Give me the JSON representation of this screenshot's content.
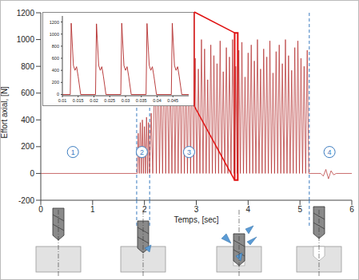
{
  "chart_data": [
    {
      "type": "line",
      "x_label": "Temps, [sec]",
      "y_label": "Effort axial, [N]",
      "color": "#b22a2a",
      "xlim": [
        0,
        6
      ],
      "xticks": [
        0,
        1,
        2,
        3,
        4,
        5,
        6
      ],
      "ylim": [
        -200,
        1200
      ],
      "yticks": [
        -200,
        0,
        200,
        400,
        600,
        800,
        1000,
        1200
      ],
      "x": [
        0,
        1.84,
        1.86,
        1.88,
        1.9,
        1.92,
        1.94,
        1.96,
        1.98,
        2.0,
        2.02,
        2.04,
        2.06,
        2.08,
        2.1,
        2.13,
        2.16,
        2.2,
        2.23,
        2.26,
        2.29,
        2.32,
        2.35,
        2.38,
        2.41,
        2.44,
        2.47,
        2.5,
        2.53,
        2.56,
        2.59,
        2.62,
        2.65,
        2.68,
        2.71,
        2.74,
        2.77,
        2.8,
        2.83,
        2.86,
        2.89,
        2.92,
        2.95,
        2.98,
        3.01,
        3.04,
        3.07,
        3.1,
        3.13,
        3.16,
        3.19,
        3.22,
        3.25,
        3.28,
        3.31,
        3.34,
        3.37,
        3.4,
        3.43,
        3.46,
        3.49,
        3.52,
        3.55,
        3.58,
        3.61,
        3.64,
        3.67,
        3.7,
        3.73,
        3.76,
        3.79,
        3.82,
        3.85,
        3.88,
        3.91,
        3.94,
        3.97,
        4,
        4.03,
        4.06,
        4.09,
        4.12,
        4.15,
        4.18,
        4.21,
        4.24,
        4.27,
        4.3,
        4.33,
        4.36,
        4.39,
        4.42,
        4.45,
        4.48,
        4.51,
        4.54,
        4.57,
        4.6,
        4.63,
        4.66,
        4.69,
        4.72,
        4.75,
        4.78,
        4.81,
        4.84,
        4.87,
        4.9,
        4.93,
        4.96,
        4.99,
        5.02,
        5.05,
        5.08,
        5.11,
        5.14,
        5.17,
        5.4,
        5.45,
        5.5,
        5.55,
        5.6,
        5.65,
        5.7,
        6
      ],
      "values": [
        0,
        0,
        0,
        300,
        0,
        380,
        0,
        400,
        0,
        350,
        0,
        420,
        0,
        380,
        0,
        450,
        0,
        820,
        0,
        950,
        0,
        700,
        0,
        980,
        0,
        880,
        0,
        760,
        0,
        1000,
        0,
        900,
        0,
        820,
        0,
        970,
        0,
        740,
        0,
        910,
        0,
        990,
        0,
        860,
        0,
        780,
        0,
        1000,
        0,
        930,
        0,
        700,
        0,
        960,
        0,
        880,
        0,
        820,
        0,
        990,
        0,
        760,
        0,
        940,
        0,
        870,
        0,
        1000,
        0,
        800,
        0,
        920,
        0,
        980,
        0,
        720,
        0,
        900,
        0,
        960,
        0,
        840,
        0,
        1000,
        0,
        780,
        0,
        930,
        0,
        870,
        0,
        990,
        0,
        750,
        0,
        910,
        0,
        960,
        0,
        820,
        0,
        1000,
        0,
        880,
        0,
        770,
        0,
        940,
        0,
        990,
        0,
        860,
        0,
        800,
        0,
        920,
        0,
        0,
        -20,
        30,
        -40,
        20,
        -10,
        0,
        0
      ],
      "vertical_lines": [
        1.85,
        2.1,
        5.18
      ],
      "annotations": [
        {
          "text": "1",
          "x": 0.62,
          "y": 160
        },
        {
          "text": "2",
          "x": 1.95,
          "y": 160
        },
        {
          "text": "3",
          "x": 2.86,
          "y": 160
        },
        {
          "text": "4",
          "x": 5.57,
          "y": 160
        }
      ],
      "zoom_window": {
        "x": [
          3.74,
          3.8
        ],
        "y": [
          -50,
          1050
        ]
      }
    },
    {
      "type": "line",
      "color": "#b22a2a",
      "xlim": [
        0.01,
        0.05
      ],
      "xticks": [
        0.01,
        0.015,
        0.02,
        0.025,
        0.03,
        0.035,
        0.04,
        0.045
      ],
      "ylim": [
        -20,
        1300
      ],
      "yticks": [
        0,
        200,
        400,
        600,
        800,
        1000,
        1200
      ],
      "x": [
        0.01,
        0.0125,
        0.0128,
        0.0135,
        0.014,
        0.0145,
        0.015,
        0.0158,
        0.0205,
        0.0208,
        0.0215,
        0.022,
        0.0225,
        0.023,
        0.0238,
        0.0285,
        0.0288,
        0.0295,
        0.03,
        0.0305,
        0.031,
        0.0318,
        0.0365,
        0.0368,
        0.0375,
        0.038,
        0.0385,
        0.039,
        0.0398,
        0.0445,
        0.0448,
        0.0455,
        0.046,
        0.0465,
        0.047,
        0.0478,
        0.05
      ],
      "values": [
        0,
        0,
        1180,
        480,
        400,
        460,
        300,
        0,
        0,
        1170,
        480,
        400,
        460,
        300,
        0,
        0,
        1180,
        480,
        400,
        460,
        300,
        0,
        0,
        1175,
        480,
        400,
        460,
        300,
        0,
        0,
        1180,
        480,
        400,
        460,
        300,
        0,
        0
      ]
    }
  ]
}
